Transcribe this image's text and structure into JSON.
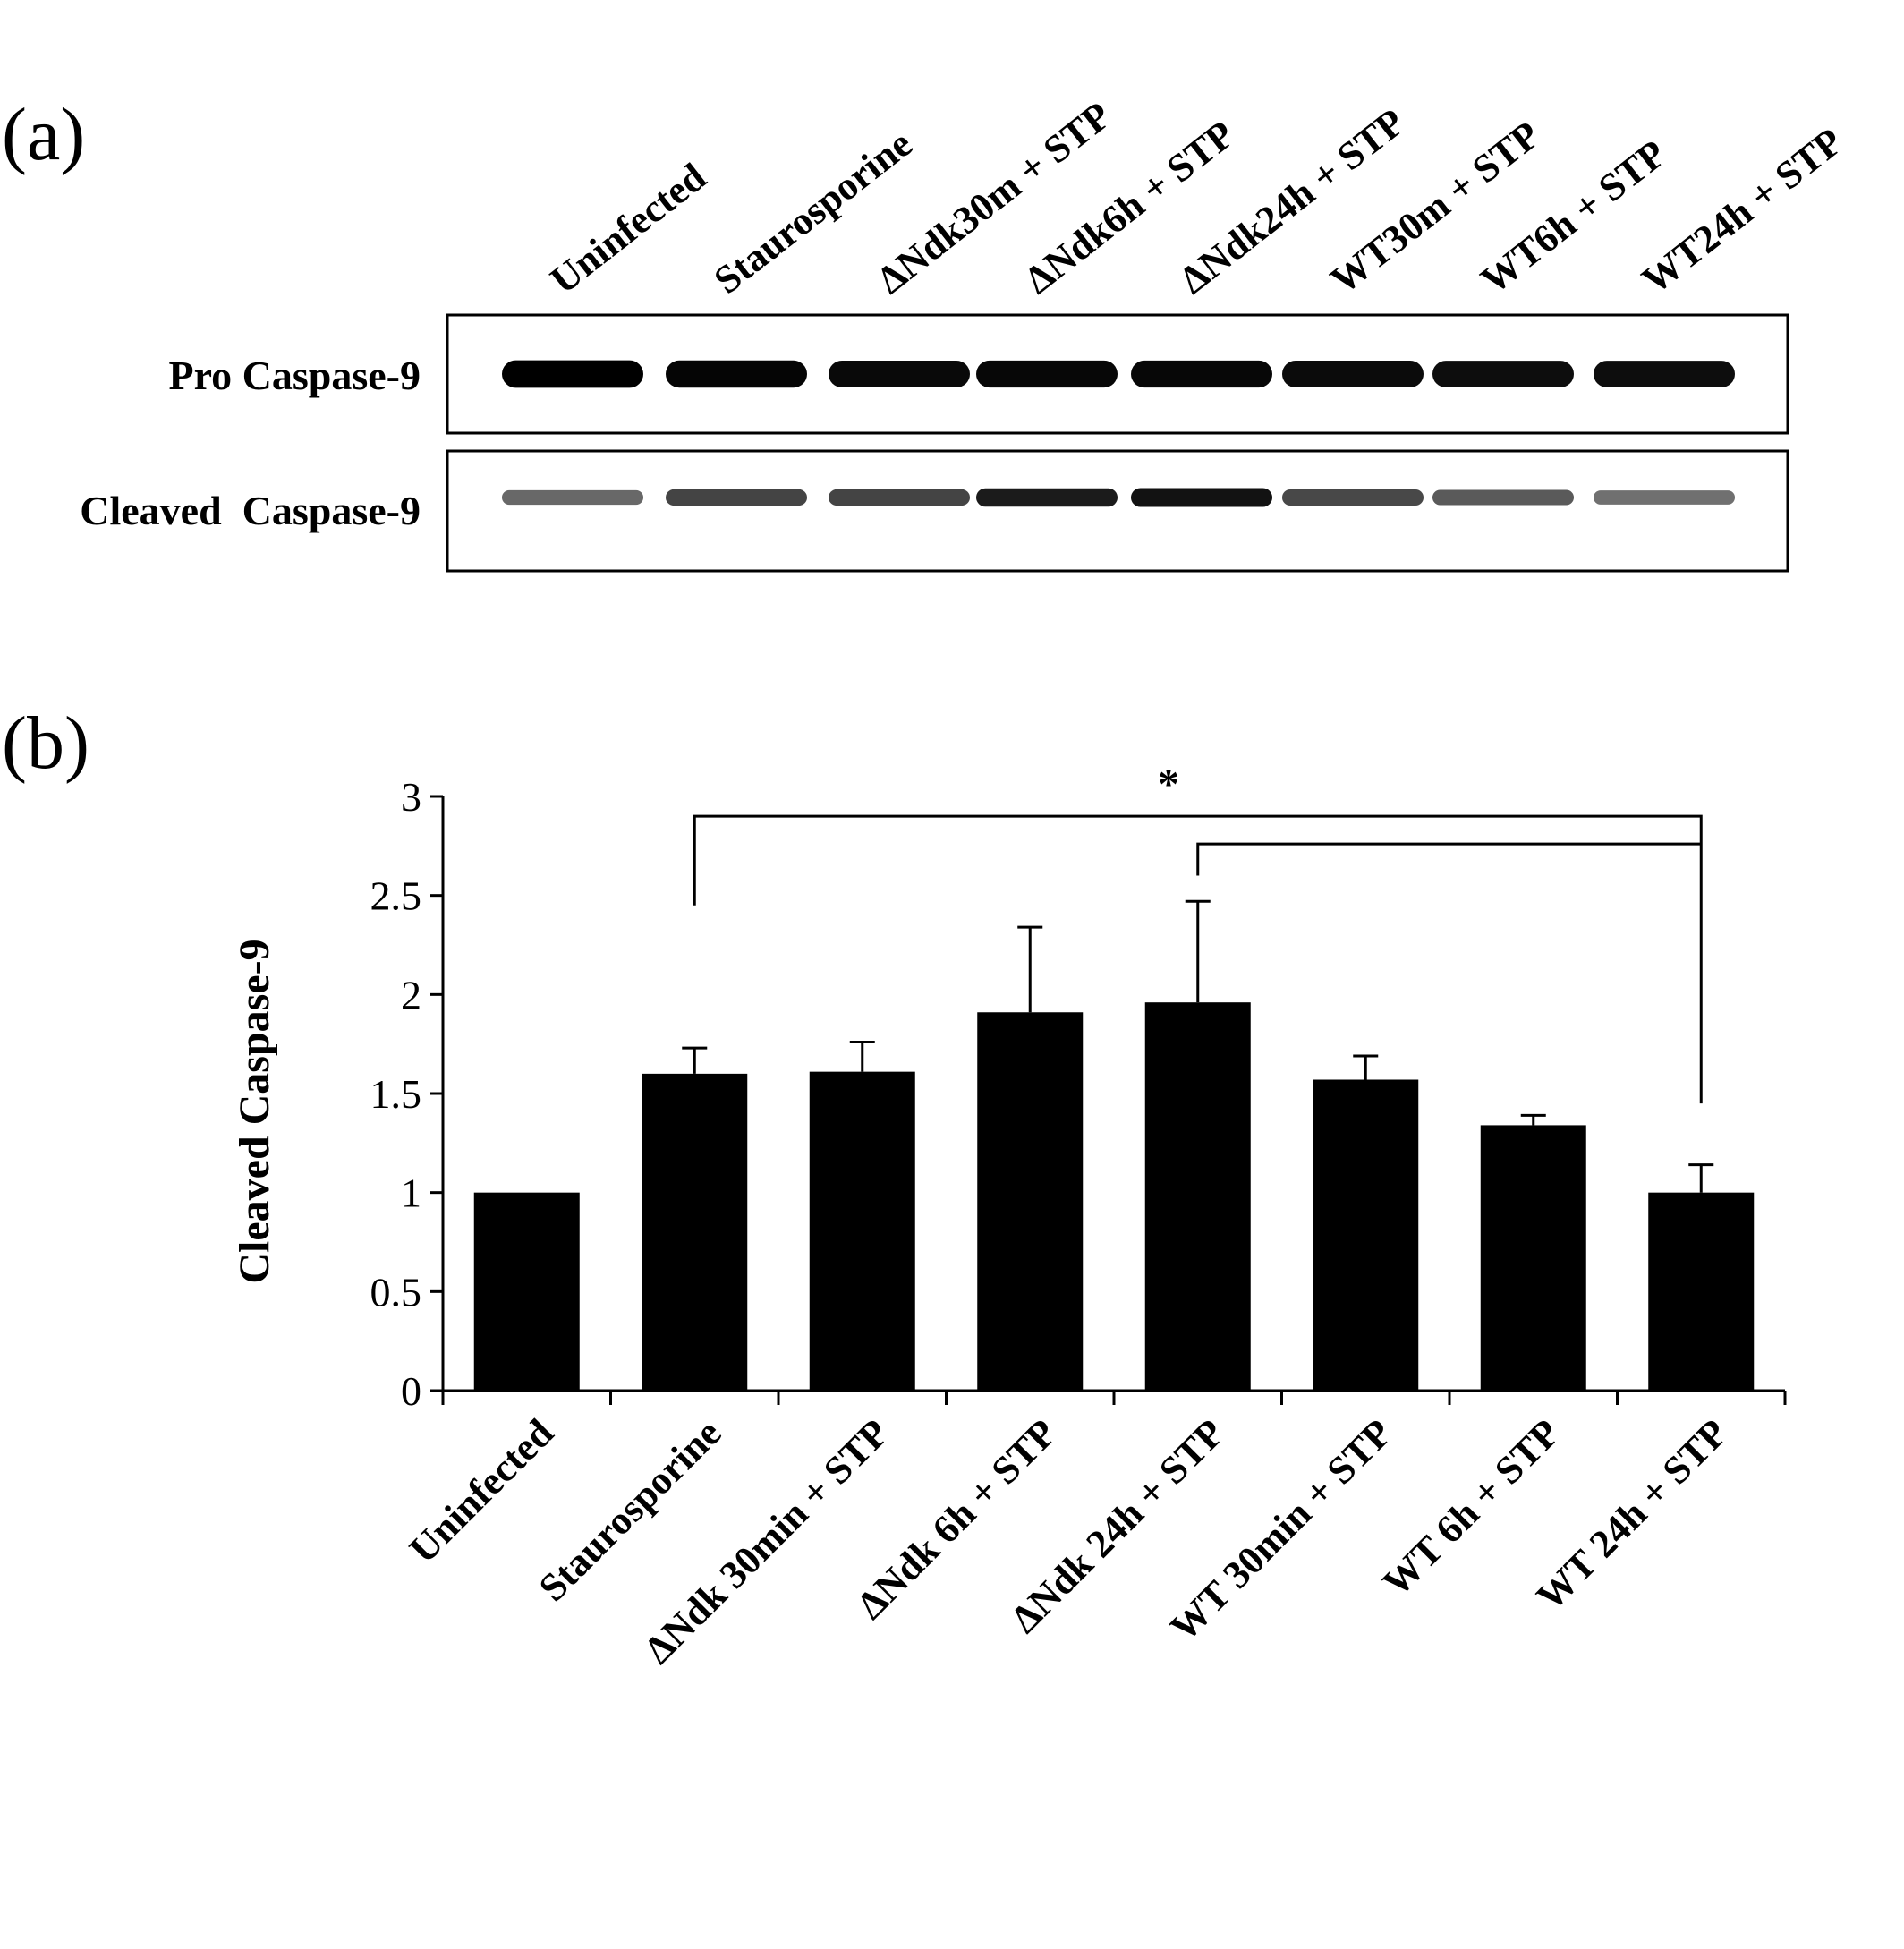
{
  "panels": {
    "a": {
      "label": "(a)"
    },
    "b": {
      "label": "(b)"
    }
  },
  "blot": {
    "lanes": [
      "Uninfected",
      "Staurosporine",
      "ΔNdk30m + STP",
      "ΔNdk6h + STP",
      "ΔNdk24h + STP",
      "WT30m + STP",
      "WT6h + STP",
      "WT24h + STP"
    ],
    "rows": [
      {
        "label": "Pro Caspase-9",
        "intensity": [
          1.0,
          0.97,
          0.95,
          0.96,
          0.96,
          0.94,
          0.93,
          0.93
        ]
      },
      {
        "label": "Cleaved  Caspase-9",
        "intensity": [
          0.42,
          0.62,
          0.62,
          0.85,
          0.9,
          0.6,
          0.5,
          0.38
        ]
      }
    ]
  },
  "chart_data": {
    "type": "bar",
    "title": "",
    "xlabel": "",
    "ylabel": "Cleaved Caspase-9",
    "categories": [
      "Uninfected",
      "Staurosporine",
      "ΔNdk 30min + STP",
      "ΔNdk 6h + STP",
      "ΔNdk 24h + STP",
      "WT 30min + STP",
      "WT 6h + STP",
      "WT 24h + STP"
    ],
    "values": [
      1.0,
      1.6,
      1.61,
      1.91,
      1.96,
      1.57,
      1.34,
      1.0
    ],
    "error_upper": [
      0.0,
      0.13,
      0.15,
      0.43,
      0.51,
      0.12,
      0.05,
      0.14
    ],
    "ylim": [
      0,
      3
    ],
    "yticks": [
      "0",
      "0.5",
      "1",
      "1.5",
      "2",
      "2.5",
      "3"
    ],
    "bar_color": "#000000",
    "grid": false,
    "legend": "none",
    "significance": {
      "marker": "*",
      "comparisons": [
        {
          "from": "Staurosporine",
          "to": "WT 24h + STP",
          "y": 2.9
        },
        {
          "from": "ΔNdk 24h + STP",
          "to": "WT 24h + STP",
          "y": 2.76
        }
      ]
    }
  }
}
